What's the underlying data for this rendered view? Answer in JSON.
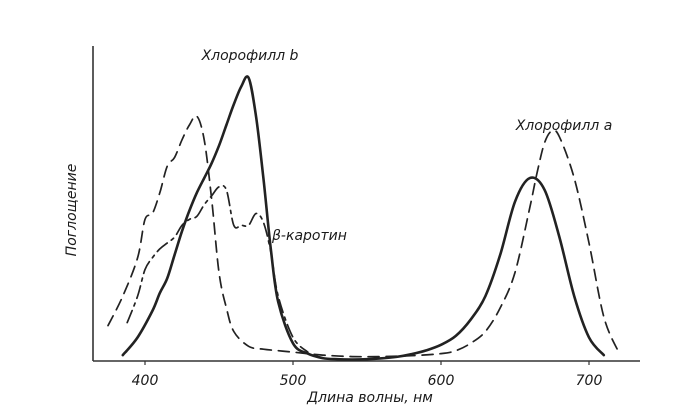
{
  "chart_data": {
    "type": "line",
    "title": "",
    "xlabel": "Длина волны, нм",
    "ylabel": "Поглощение",
    "xlim": [
      370,
      740
    ],
    "ylim": [
      0,
      100
    ],
    "grid": false,
    "x_ticks": [
      {
        "value": 400,
        "label": "400"
      },
      {
        "value": 500,
        "label": "500"
      },
      {
        "value": 600,
        "label": "600"
      },
      {
        "value": 700,
        "label": "700"
      }
    ],
    "series": [
      {
        "name": "Хлорофилл b",
        "style": "solid",
        "color": "#222222",
        "x": [
          385,
          395,
          405,
          410,
          415,
          420,
          425,
          430,
          435,
          440,
          445,
          450,
          455,
          460,
          465,
          470,
          475,
          480,
          485,
          490,
          500,
          510,
          520,
          530,
          540,
          550,
          560,
          570,
          580,
          590,
          600,
          610,
          620,
          630,
          640,
          650,
          660,
          670,
          680,
          690,
          700,
          710
        ],
        "y": [
          2,
          8,
          17,
          23,
          28,
          36,
          44,
          51,
          57,
          62,
          67,
          73,
          80,
          87,
          93,
          96,
          83,
          62,
          38,
          20,
          6,
          2.5,
          1,
          0.6,
          0.5,
          0.6,
          0.9,
          1.4,
          2.3,
          3.6,
          5.5,
          8.5,
          14,
          22,
          36,
          54,
          62,
          58,
          42,
          22,
          8,
          2
        ]
      },
      {
        "name": "Хлорофилл a",
        "style": "dashed",
        "color": "#222222",
        "x": [
          375,
          385,
          395,
          400,
          405,
          410,
          415,
          420,
          425,
          430,
          435,
          440,
          445,
          450,
          455,
          460,
          470,
          480,
          490,
          500,
          520,
          540,
          560,
          580,
          600,
          610,
          620,
          630,
          640,
          650,
          660,
          665,
          670,
          675,
          680,
          690,
          700,
          710,
          720
        ],
        "y": [
          12,
          22,
          35,
          48,
          50,
          57,
          66,
          69,
          75,
          80,
          83,
          75,
          55,
          30,
          18,
          10,
          5,
          4,
          3.5,
          3,
          2,
          1.5,
          1.5,
          1.8,
          2.5,
          3.5,
          6,
          10,
          18,
          30,
          52,
          64,
          74,
          78,
          76,
          62,
          40,
          15,
          3
        ]
      },
      {
        "name": "β-каротин",
        "style": "dashdot",
        "color": "#222222",
        "x": [
          388,
          395,
          400,
          405,
          410,
          415,
          420,
          425,
          430,
          435,
          440,
          445,
          450,
          455,
          460,
          465,
          470,
          475,
          480,
          485,
          490,
          500,
          510
        ],
        "y": [
          13,
          22,
          31,
          35,
          38,
          40,
          42,
          46,
          48,
          49,
          53,
          56,
          59,
          58,
          46,
          46,
          46,
          50,
          47,
          37,
          22,
          8,
          3
        ]
      }
    ],
    "annotations": [
      {
        "text": "Хлорофилл b",
        "series": "Хлорофилл b"
      },
      {
        "text": "Хлорофилл a",
        "series": "Хлорофилл a"
      },
      {
        "text": "β-каротин",
        "series": "β-каротин"
      }
    ]
  }
}
